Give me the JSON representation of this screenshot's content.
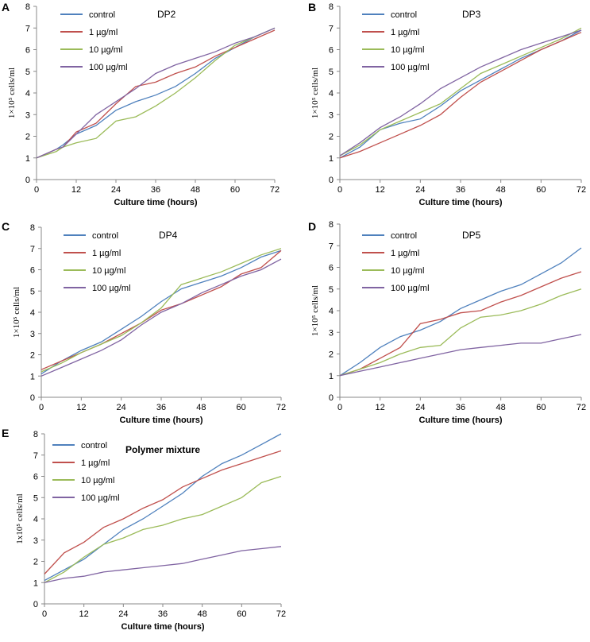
{
  "figure": {
    "series_names": [
      "control",
      "1 µg/ml",
      "10 µg/ml",
      "100 µg/ml"
    ],
    "series_colors": {
      "control": "#4F81BD",
      "1 µg/ml": "#C0504D",
      "10 µg/ml": "#9BBB59",
      "100 µg/ml": "#8064A2"
    }
  },
  "chart_data": [
    {
      "panel": "A",
      "type": "line",
      "title": "DP2",
      "xlabel": "Culture time (hours)",
      "ylabel": "1×10⁵ cells/ml",
      "xlim": [
        0,
        72
      ],
      "ylim": [
        0,
        8
      ],
      "xticks": [
        0,
        12,
        24,
        36,
        48,
        60,
        72
      ],
      "yticks": [
        0,
        1,
        2,
        3,
        4,
        5,
        6,
        7,
        8
      ],
      "x": [
        0,
        6,
        8,
        12,
        18,
        24,
        30,
        36,
        42,
        48,
        54,
        60,
        66,
        72
      ],
      "series": [
        {
          "name": "control",
          "values": [
            1.0,
            1.4,
            1.6,
            2.1,
            2.5,
            3.2,
            3.6,
            3.9,
            4.3,
            4.9,
            5.6,
            6.1,
            6.6,
            7.0
          ]
        },
        {
          "name": "1 µg/ml",
          "values": [
            1.0,
            1.4,
            1.5,
            2.2,
            2.6,
            3.5,
            4.3,
            4.5,
            4.9,
            5.2,
            5.7,
            6.1,
            6.5,
            6.9
          ]
        },
        {
          "name": "10 µg/ml",
          "values": [
            1.0,
            1.3,
            1.5,
            1.7,
            1.9,
            2.7,
            2.9,
            3.4,
            4.0,
            4.7,
            5.5,
            6.2,
            6.6,
            7.0
          ]
        },
        {
          "name": "100 µg/ml",
          "values": [
            1.0,
            1.4,
            1.5,
            2.1,
            3.0,
            3.6,
            4.2,
            4.9,
            5.3,
            5.6,
            5.9,
            6.3,
            6.6,
            7.0
          ]
        }
      ]
    },
    {
      "panel": "B",
      "type": "line",
      "title": "DP3",
      "xlabel": "Culture time (hours)",
      "ylabel": "1×10⁵ cells/ml",
      "xlim": [
        0,
        72
      ],
      "ylim": [
        0,
        8
      ],
      "xticks": [
        0,
        12,
        24,
        36,
        48,
        60,
        72
      ],
      "yticks": [
        0,
        1,
        2,
        3,
        4,
        5,
        6,
        7,
        8
      ],
      "x": [
        0,
        6,
        12,
        18,
        24,
        30,
        36,
        42,
        48,
        54,
        60,
        66,
        72
      ],
      "series": [
        {
          "name": "control",
          "values": [
            1.0,
            1.5,
            2.3,
            2.6,
            2.8,
            3.4,
            4.1,
            4.6,
            5.1,
            5.6,
            6.0,
            6.4,
            6.9
          ]
        },
        {
          "name": "1 µg/ml",
          "values": [
            1.0,
            1.3,
            1.7,
            2.1,
            2.5,
            3.0,
            3.8,
            4.5,
            5.0,
            5.5,
            6.0,
            6.4,
            6.8
          ]
        },
        {
          "name": "10 µg/ml",
          "values": [
            1.1,
            1.6,
            2.3,
            2.7,
            3.1,
            3.5,
            4.2,
            4.9,
            5.3,
            5.7,
            6.1,
            6.5,
            7.0
          ]
        },
        {
          "name": "100 µg/ml",
          "values": [
            1.1,
            1.7,
            2.4,
            2.9,
            3.5,
            4.2,
            4.7,
            5.2,
            5.6,
            6.0,
            6.3,
            6.6,
            6.9
          ]
        }
      ]
    },
    {
      "panel": "C",
      "type": "line",
      "title": "DP4",
      "xlabel": "Culture time (hours)",
      "ylabel": "1×10⁵ cells/ml",
      "xlim": [
        0,
        72
      ],
      "ylim": [
        0,
        8
      ],
      "xticks": [
        0,
        12,
        24,
        36,
        48,
        60,
        72
      ],
      "yticks": [
        0,
        1,
        2,
        3,
        4,
        5,
        6,
        7,
        8
      ],
      "x": [
        0,
        6,
        12,
        18,
        24,
        30,
        36,
        42,
        48,
        54,
        60,
        66,
        72
      ],
      "series": [
        {
          "name": "control",
          "values": [
            1.1,
            1.7,
            2.2,
            2.6,
            3.2,
            3.8,
            4.5,
            5.1,
            5.4,
            5.7,
            6.1,
            6.6,
            6.9
          ]
        },
        {
          "name": "1 µg/ml",
          "values": [
            1.3,
            1.7,
            2.1,
            2.5,
            3.0,
            3.5,
            4.1,
            4.4,
            4.8,
            5.2,
            5.8,
            6.1,
            6.9
          ]
        },
        {
          "name": "10 µg/ml",
          "values": [
            1.2,
            1.6,
            2.1,
            2.5,
            2.9,
            3.5,
            4.2,
            5.3,
            5.6,
            5.9,
            6.3,
            6.7,
            7.0
          ]
        },
        {
          "name": "100 µg/ml",
          "values": [
            1.0,
            1.4,
            1.8,
            2.2,
            2.7,
            3.4,
            4.0,
            4.4,
            4.9,
            5.3,
            5.7,
            6.0,
            6.5
          ]
        }
      ]
    },
    {
      "panel": "D",
      "type": "line",
      "title": "DP5",
      "xlabel": "Culture time (hours)",
      "ylabel": "1×10⁵ cells/ml",
      "xlim": [
        0,
        72
      ],
      "ylim": [
        0,
        8
      ],
      "xticks": [
        0,
        12,
        24,
        36,
        48,
        60,
        72
      ],
      "yticks": [
        0,
        1,
        2,
        3,
        4,
        5,
        6,
        7,
        8
      ],
      "x": [
        0,
        6,
        12,
        18,
        24,
        30,
        36,
        42,
        48,
        54,
        60,
        66,
        72
      ],
      "series": [
        {
          "name": "control",
          "values": [
            1.0,
            1.6,
            2.3,
            2.8,
            3.1,
            3.5,
            4.1,
            4.5,
            4.9,
            5.2,
            5.7,
            6.2,
            6.9
          ]
        },
        {
          "name": "1 µg/ml",
          "values": [
            1.0,
            1.3,
            1.8,
            2.3,
            3.4,
            3.6,
            3.9,
            4.0,
            4.4,
            4.7,
            5.1,
            5.5,
            5.8
          ]
        },
        {
          "name": "10 µg/ml",
          "values": [
            1.0,
            1.3,
            1.6,
            2.0,
            2.3,
            2.4,
            3.2,
            3.7,
            3.8,
            4.0,
            4.3,
            4.7,
            5.0
          ]
        },
        {
          "name": "100 µg/ml",
          "values": [
            1.0,
            1.2,
            1.4,
            1.6,
            1.8,
            2.0,
            2.2,
            2.3,
            2.4,
            2.5,
            2.5,
            2.7,
            2.9
          ]
        }
      ]
    },
    {
      "panel": "E",
      "type": "line",
      "title": "Polymer mixture",
      "xlabel": "Culture time (hours)",
      "ylabel": "1x10⁵ cells/ml",
      "xlim": [
        0,
        72
      ],
      "ylim": [
        0,
        8
      ],
      "xticks": [
        0,
        12,
        24,
        36,
        48,
        60,
        72
      ],
      "yticks": [
        0,
        1,
        2,
        3,
        4,
        5,
        6,
        7,
        8
      ],
      "x": [
        0,
        6,
        12,
        18,
        24,
        30,
        36,
        42,
        48,
        54,
        60,
        66,
        72
      ],
      "series": [
        {
          "name": "control",
          "values": [
            1.1,
            1.6,
            2.1,
            2.8,
            3.5,
            4.0,
            4.6,
            5.2,
            6.0,
            6.6,
            7.0,
            7.5,
            8.0
          ]
        },
        {
          "name": "1 µg/ml",
          "values": [
            1.4,
            2.4,
            2.9,
            3.6,
            4.0,
            4.5,
            4.9,
            5.5,
            5.9,
            6.3,
            6.6,
            6.9,
            7.2
          ]
        },
        {
          "name": "10 µg/ml",
          "values": [
            1.0,
            1.5,
            2.2,
            2.8,
            3.1,
            3.5,
            3.7,
            4.0,
            4.2,
            4.6,
            5.0,
            5.7,
            6.0
          ]
        },
        {
          "name": "100 µg/ml",
          "values": [
            1.0,
            1.2,
            1.3,
            1.5,
            1.6,
            1.7,
            1.8,
            1.9,
            2.1,
            2.3,
            2.5,
            2.6,
            2.7
          ]
        }
      ]
    }
  ]
}
